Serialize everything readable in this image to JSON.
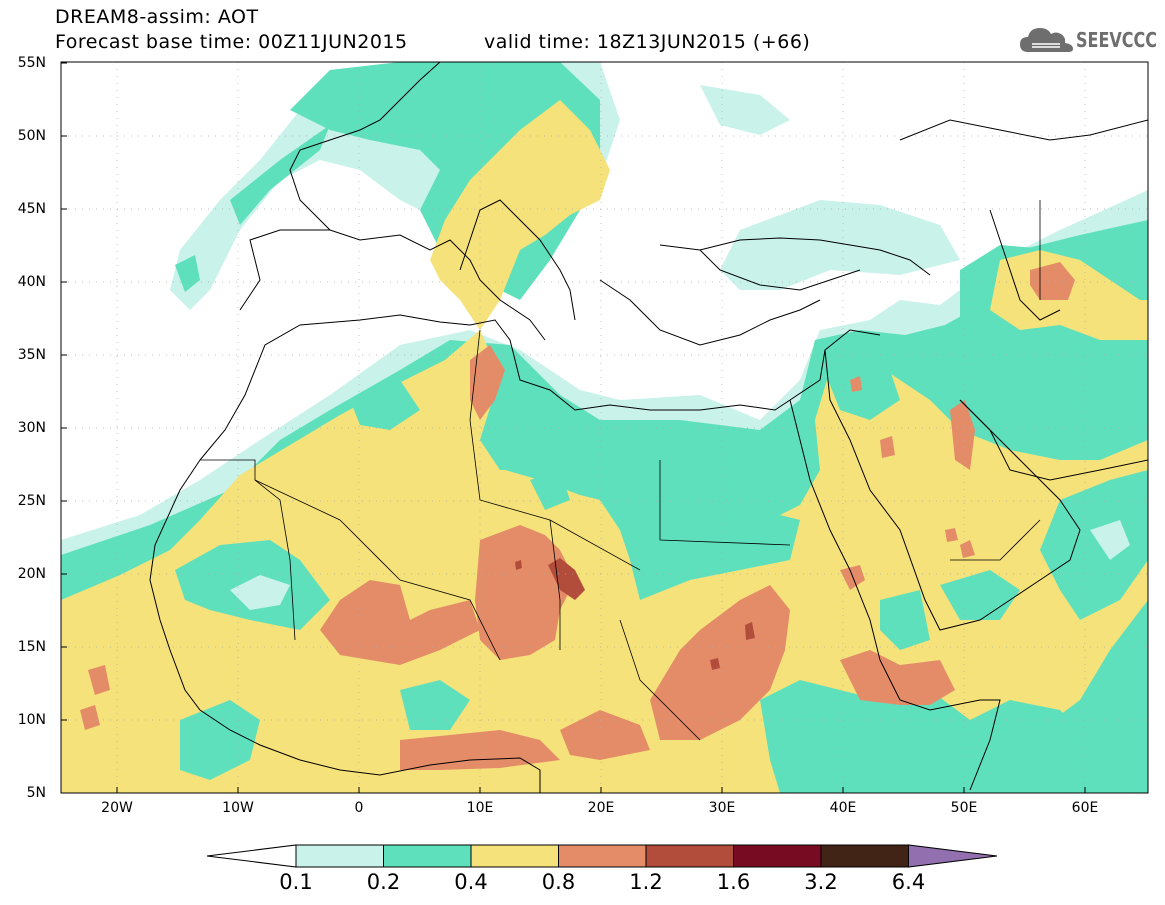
{
  "header": {
    "title_line1": "DREAM8-assim: AOT",
    "title_line2": "Forecast base time: 00Z11JUN2015",
    "valid_time": "valid time: 18Z13JUN2015 (+66)",
    "logo_text": "SEEVCCC"
  },
  "colors": {
    "c01": "#c8f2ea",
    "c02": "#5fe0bc",
    "c04": "#f6e27a",
    "c08": "#e48c68",
    "c12": "#b24d3c",
    "c16": "#760b22",
    "c32": "#412416",
    "c64": "#9270b0",
    "land_below": "#ffffff",
    "coastline": "#000000"
  },
  "map": {
    "lat_labels": [
      "55N",
      "50N",
      "45N",
      "40N",
      "35N",
      "30N",
      "25N",
      "20N",
      "15N",
      "10N",
      "5N"
    ],
    "lat_values": [
      55,
      50,
      45,
      40,
      35,
      30,
      25,
      20,
      15,
      10,
      5
    ],
    "lon_labels": [
      "20W",
      "10W",
      "0",
      "10E",
      "20E",
      "30E",
      "40E",
      "50E",
      "60E"
    ],
    "lon_values": [
      -20,
      -10,
      0,
      10,
      20,
      30,
      40,
      50,
      60
    ],
    "lon_range": [
      -25,
      65
    ],
    "lat_range": [
      5,
      55
    ],
    "grid": "dotted"
  },
  "colorbar": {
    "labels": [
      "0.1",
      "0.2",
      "0.4",
      "0.8",
      "1.2",
      "1.6",
      "3.2",
      "6.4"
    ],
    "thresholds": [
      0.1,
      0.2,
      0.4,
      0.8,
      1.2,
      1.6,
      3.2,
      6.4
    ]
  }
}
